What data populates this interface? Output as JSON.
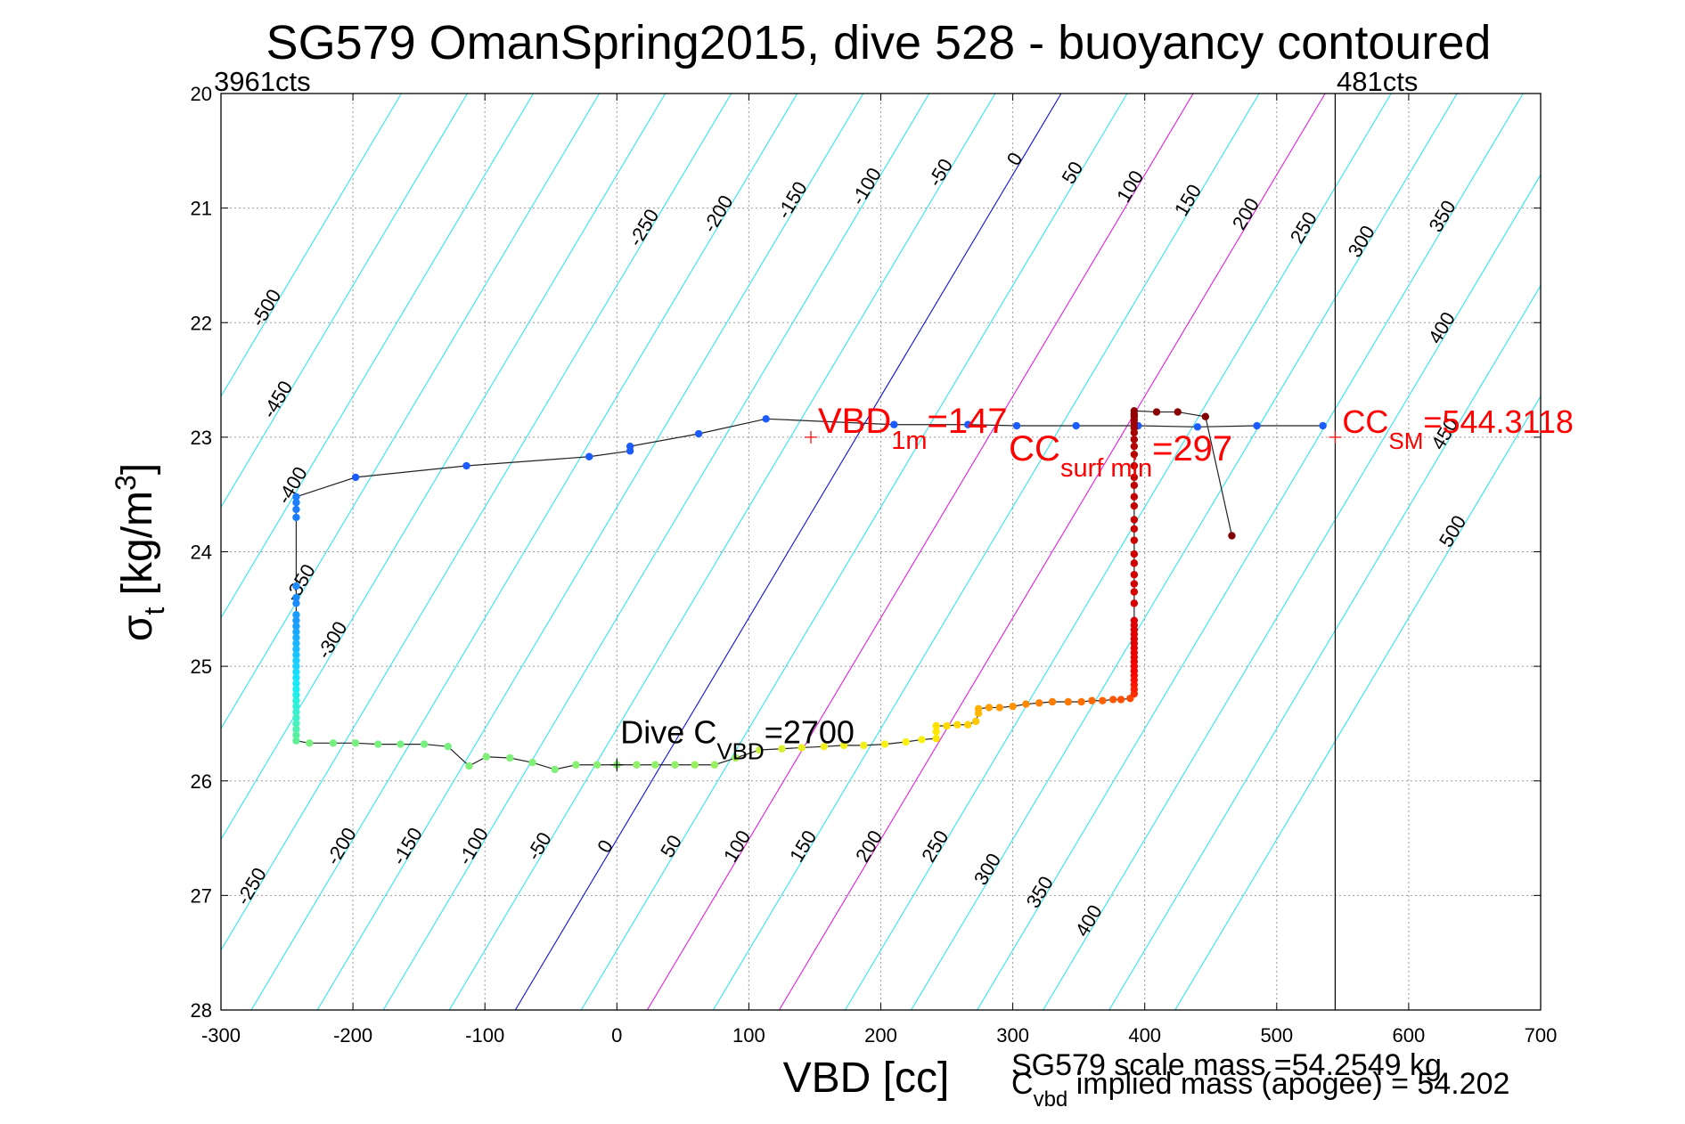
{
  "chart_data": {
    "type": "scatter",
    "title": "SG579 OmanSpring2015, dive 528 - buoyancy contoured",
    "xlabel": "VBD [cc]",
    "ylabel": "σ",
    "ylabel_sub": "t",
    "ylabel_unit": " [kg/m",
    "ylabel_sup": "3",
    "ylabel_close": "]",
    "xlim": [
      -300,
      700
    ],
    "ylim": [
      20,
      28
    ],
    "y_reversed": true,
    "grid": true,
    "x_ticks": [
      -300,
      -200,
      -100,
      0,
      100,
      200,
      300,
      400,
      500,
      600,
      700
    ],
    "y_ticks": [
      20,
      21,
      22,
      23,
      24,
      25,
      26,
      27,
      28
    ],
    "corner_labels": {
      "left": "3961cts",
      "right": "481cts"
    },
    "vertical_line_x": 544.3118,
    "buoyancy_contours": {
      "sigma_at_zero_top": 20.4,
      "sigma_at_zero_bottom": 28.0,
      "top_zero_x": 316,
      "bottom_zero_x": -77,
      "values": [
        -500,
        -450,
        -400,
        -350,
        -300,
        -250,
        -200,
        -150,
        -100,
        -50,
        0,
        50,
        100,
        150,
        200,
        250,
        300,
        350,
        400,
        450,
        500
      ],
      "top_label_values": [
        -500,
        -450,
        -400,
        -350,
        -300,
        -250,
        -200,
        -150,
        -100,
        -50,
        0,
        50,
        100,
        150,
        200,
        250,
        300,
        350,
        400,
        450,
        500
      ],
      "bottom_label_values": [
        -250,
        -200,
        -150,
        -100,
        -50,
        0,
        50,
        100,
        150,
        200,
        250,
        300,
        350,
        400
      ],
      "colors": {
        "default": "#33e6f0",
        "zero": "#1010e0",
        "highlight": "#e020e0"
      },
      "highlight_values": [
        100,
        200
      ]
    },
    "series": [
      {
        "points": [
          [
            535,
            22.9,
            "#1a5cff"
          ],
          [
            485,
            22.9,
            "#1a5cff"
          ],
          [
            440,
            22.91,
            "#1a5cff"
          ],
          [
            395,
            22.9,
            "#1a5cff"
          ],
          [
            348,
            22.9,
            "#1a5cff"
          ],
          [
            303,
            22.9,
            "#1a5cff"
          ],
          [
            266,
            22.89,
            "#1a5cff"
          ],
          [
            210,
            22.89,
            "#1a5cff"
          ],
          [
            113,
            22.84,
            "#1a5cff"
          ],
          [
            62,
            22.97,
            "#1a5cff"
          ],
          [
            10,
            23.08,
            "#1a5cff"
          ],
          [
            10,
            23.12,
            "#1a5cff"
          ],
          [
            -21,
            23.17,
            "#1a5cff"
          ],
          [
            -114,
            23.25,
            "#1a5cff"
          ],
          [
            -198,
            23.35,
            "#1a5cff"
          ],
          [
            -243,
            23.52,
            "#1a7cff"
          ],
          [
            -243,
            23.57,
            "#1a7cff"
          ],
          [
            -243,
            23.63,
            "#1a7cff"
          ],
          [
            -243,
            23.7,
            "#1a7cff"
          ],
          [
            -243,
            24.3,
            "#1a8cff"
          ],
          [
            -243,
            24.4,
            "#1a8cff"
          ],
          [
            -243,
            24.45,
            "#1a8cff"
          ],
          [
            -243,
            24.55,
            "#1a9cff"
          ],
          [
            -243,
            24.6,
            "#1a9cff"
          ],
          [
            -243,
            24.65,
            "#1aa0ff"
          ],
          [
            -243,
            24.7,
            "#1aa8ff"
          ],
          [
            -243,
            24.75,
            "#1aacff"
          ],
          [
            -243,
            24.8,
            "#1ab4ff"
          ],
          [
            -243,
            24.85,
            "#1abcff"
          ],
          [
            -243,
            24.9,
            "#1ac4ff"
          ],
          [
            -243,
            24.95,
            "#1accff"
          ],
          [
            -243,
            25.0,
            "#1ad4ff"
          ],
          [
            -243,
            25.05,
            "#1adcff"
          ],
          [
            -243,
            25.1,
            "#1ae0ff"
          ],
          [
            -243,
            25.15,
            "#1ae8f8"
          ],
          [
            -243,
            25.2,
            "#1aecf0"
          ],
          [
            -243,
            25.25,
            "#22eee8"
          ],
          [
            -243,
            25.3,
            "#2af0e0"
          ],
          [
            -243,
            25.35,
            "#30f0d8"
          ],
          [
            -243,
            25.4,
            "#38f0d0"
          ],
          [
            -243,
            25.45,
            "#40f0c8"
          ],
          [
            -243,
            25.5,
            "#48f0c0"
          ],
          [
            -243,
            25.55,
            "#50f0b0"
          ],
          [
            -243,
            25.6,
            "#58f0a0"
          ],
          [
            -243,
            25.65,
            "#60f098"
          ],
          [
            -233,
            25.67,
            "#78f080"
          ],
          [
            -215,
            25.67,
            "#78f080"
          ],
          [
            -198,
            25.67,
            "#78f080"
          ],
          [
            -181,
            25.68,
            "#78f080"
          ],
          [
            -164,
            25.68,
            "#78f080"
          ],
          [
            -146,
            25.68,
            "#78f080"
          ],
          [
            -128,
            25.7,
            "#78f080"
          ],
          [
            -112,
            25.87,
            "#80f078"
          ],
          [
            -99,
            25.79,
            "#80f078"
          ],
          [
            -81,
            25.8,
            "#80f078"
          ],
          [
            -64,
            25.84,
            "#80f078"
          ],
          [
            -47,
            25.9,
            "#80f078"
          ],
          [
            -31,
            25.86,
            "#88f070"
          ],
          [
            -15,
            25.86,
            "#88f070"
          ],
          [
            0,
            25.86,
            "#88f070"
          ],
          [
            15,
            25.86,
            "#90f068"
          ],
          [
            29,
            25.86,
            "#90f068"
          ],
          [
            44,
            25.86,
            "#90f068"
          ],
          [
            59,
            25.86,
            "#98f060"
          ],
          [
            74,
            25.86,
            "#98f060"
          ],
          [
            90,
            25.8,
            "#a8f058"
          ],
          [
            108,
            25.73,
            "#c8f040"
          ],
          [
            125,
            25.72,
            "#d8f030"
          ],
          [
            140,
            25.71,
            "#e8f020"
          ],
          [
            157,
            25.7,
            "#f0f018"
          ],
          [
            172,
            25.69,
            "#f0f018"
          ],
          [
            187,
            25.69,
            "#f0f018"
          ],
          [
            203,
            25.68,
            "#f8f010"
          ],
          [
            219,
            25.66,
            "#f8f010"
          ],
          [
            231,
            25.64,
            "#f8f010"
          ],
          [
            242,
            25.63,
            "#ffe800"
          ],
          [
            242,
            25.57,
            "#ffe800"
          ],
          [
            242,
            25.52,
            "#ffe000"
          ],
          [
            250,
            25.52,
            "#ffd800"
          ],
          [
            258,
            25.51,
            "#ffd800"
          ],
          [
            266,
            25.51,
            "#ffd000"
          ],
          [
            272,
            25.48,
            "#ffc800"
          ],
          [
            274,
            25.41,
            "#ffb800"
          ],
          [
            274,
            25.37,
            "#ffb000"
          ],
          [
            282,
            25.36,
            "#ffa000"
          ],
          [
            290,
            25.36,
            "#ff9800"
          ],
          [
            300,
            25.35,
            "#ff9000"
          ],
          [
            310,
            25.33,
            "#ff8800"
          ],
          [
            320,
            25.32,
            "#ff8000"
          ],
          [
            330,
            25.31,
            "#ff7c00"
          ],
          [
            342,
            25.31,
            "#ff7800"
          ],
          [
            352,
            25.31,
            "#ff7000"
          ],
          [
            360,
            25.3,
            "#ff6800"
          ],
          [
            368,
            25.3,
            "#ff6000"
          ],
          [
            376,
            25.29,
            "#ff5800"
          ],
          [
            382,
            25.29,
            "#ff5000"
          ],
          [
            389,
            25.28,
            "#ff4800"
          ],
          [
            392,
            25.24,
            "#ff3000"
          ],
          [
            392,
            25.2,
            "#ff2000"
          ],
          [
            392,
            25.16,
            "#ff1800"
          ],
          [
            392,
            25.12,
            "#ff1000"
          ],
          [
            392,
            25.08,
            "#ff0800"
          ],
          [
            392,
            25.04,
            "#f80000"
          ],
          [
            392,
            25.0,
            "#f40000"
          ],
          [
            392,
            24.96,
            "#f00000"
          ],
          [
            392,
            24.92,
            "#ec0000"
          ],
          [
            392,
            24.88,
            "#e80000"
          ],
          [
            392,
            24.84,
            "#e80000"
          ],
          [
            392,
            24.8,
            "#e40000"
          ],
          [
            392,
            24.76,
            "#e40000"
          ],
          [
            392,
            24.72,
            "#e00000"
          ],
          [
            392,
            24.68,
            "#e00000"
          ],
          [
            392,
            24.64,
            "#e00000"
          ],
          [
            392,
            24.6,
            "#dc0000"
          ],
          [
            392,
            24.45,
            "#d80000"
          ],
          [
            392,
            24.35,
            "#d80000"
          ],
          [
            392,
            24.28,
            "#d40000"
          ],
          [
            392,
            24.2,
            "#d40000"
          ],
          [
            392,
            24.1,
            "#d00000"
          ],
          [
            392,
            24.02,
            "#d00000"
          ],
          [
            392,
            23.9,
            "#cc0000"
          ],
          [
            392,
            23.8,
            "#c80000"
          ],
          [
            392,
            23.72,
            "#c80000"
          ],
          [
            392,
            23.6,
            "#c40000"
          ],
          [
            392,
            23.52,
            "#c40000"
          ],
          [
            392,
            23.42,
            "#c00000"
          ],
          [
            392,
            23.35,
            "#c00000"
          ],
          [
            392,
            23.25,
            "#bc0000"
          ],
          [
            392,
            23.15,
            "#b80000"
          ],
          [
            392,
            23.08,
            "#b40000"
          ],
          [
            392,
            23.02,
            "#b00000"
          ],
          [
            392,
            22.96,
            "#a80000"
          ],
          [
            392,
            22.92,
            "#a40000"
          ],
          [
            392,
            22.88,
            "#a00000"
          ],
          [
            392,
            22.85,
            "#9c0000"
          ],
          [
            392,
            22.82,
            "#980000"
          ],
          [
            392,
            22.8,
            "#940000"
          ],
          [
            392,
            22.77,
            "#900000"
          ],
          [
            409,
            22.78,
            "#880000"
          ],
          [
            425,
            22.78,
            "#880000"
          ],
          [
            446,
            22.82,
            "#800000"
          ],
          [
            466,
            23.86,
            "#800000"
          ]
        ]
      }
    ],
    "annotations": [
      {
        "id": "vbd1m",
        "text": "VBD",
        "sub": "1m",
        "after": "=147",
        "x": 147,
        "y": 23.0,
        "color": "#ff0000",
        "marker": "+"
      },
      {
        "id": "ccsurf",
        "text": "CC",
        "sub": "surf min",
        "after": "=297",
        "x": 297,
        "y": 23.0,
        "color": "#ff0000"
      },
      {
        "id": "ccsm",
        "text": "CC",
        "sub": "SM",
        "after": "=544.3118",
        "x": 544.3118,
        "y": 23.0,
        "color": "#ff0000",
        "marker": "+"
      },
      {
        "id": "divec",
        "text": "Dive C",
        "sub": "VBD",
        "after": "=2700",
        "x": 0,
        "y": 25.86,
        "color": "#000000",
        "marker": "+"
      }
    ],
    "footer": {
      "scale_mass": "SG579 scale mass =54.2549 kg",
      "implied_prefix": "C",
      "implied_sub": "vbd",
      "implied_text": " implied mass (apogee) = 54.202"
    }
  }
}
